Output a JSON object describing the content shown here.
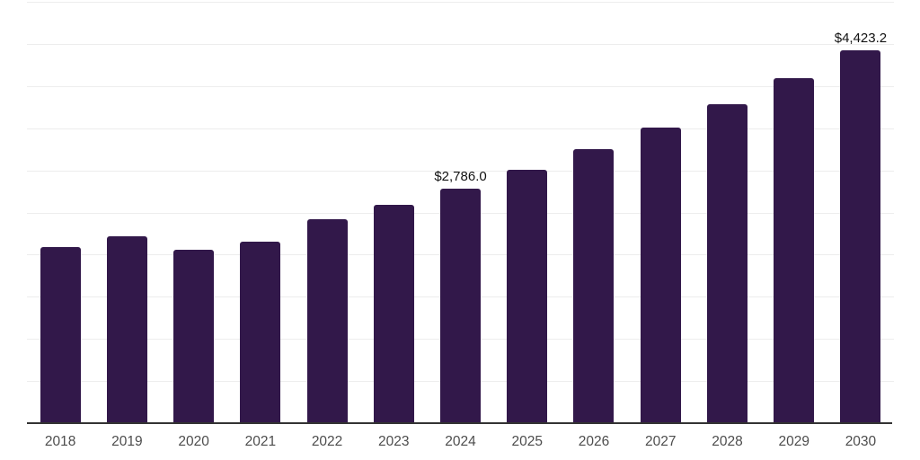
{
  "chart_data": {
    "type": "bar",
    "title": "",
    "xlabel": "",
    "ylabel": "",
    "categories": [
      "2018",
      "2019",
      "2020",
      "2021",
      "2022",
      "2023",
      "2024",
      "2025",
      "2026",
      "2027",
      "2028",
      "2029",
      "2030"
    ],
    "values": [
      2085,
      2220,
      2055,
      2155,
      2420,
      2590,
      2786.0,
      3010,
      3250,
      3510,
      3790,
      4094,
      4423.2
    ],
    "bar_labels": [
      "",
      "",
      "",
      "",
      "",
      "",
      "$2,786.0",
      "",
      "",
      "",
      "",
      "",
      "$4,423.2"
    ],
    "ylim": [
      0,
      5000
    ],
    "gridline_step": 500,
    "grid": "horizontal-only",
    "y_tick_labels_shown": false,
    "legend": "none",
    "colors": {
      "bar": "#32184a",
      "axis_line": "#333333",
      "gridline": "#ededed",
      "tick_label": "#4d4d4d",
      "value_label": "#111111",
      "background": "#ffffff"
    }
  }
}
